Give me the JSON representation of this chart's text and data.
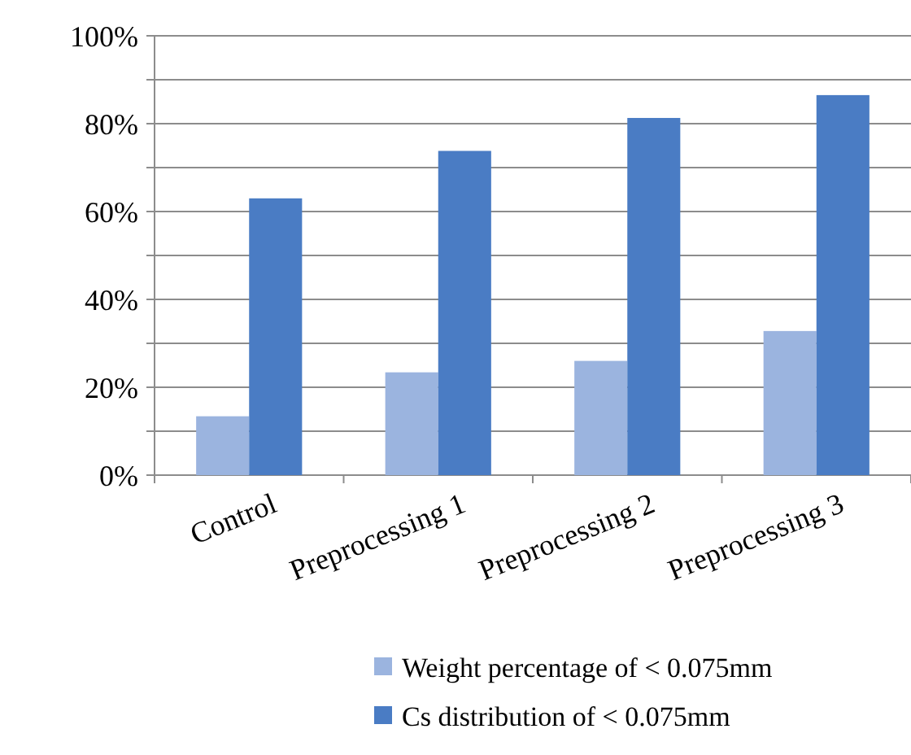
{
  "chart_data": {
    "type": "bar",
    "categories": [
      "Control",
      "Preprocessing 1",
      "Preprocessing 2",
      "Preprocessing 3"
    ],
    "series": [
      {
        "name": "Weight percentage of < 0.075mm",
        "color": "#9bb4df",
        "values": [
          13.4,
          23.4,
          26,
          32.8
        ]
      },
      {
        "name": "Cs distribution of < 0.075mm",
        "color": "#4a7cc4",
        "values": [
          63,
          73.8,
          81.3,
          86.5
        ]
      }
    ],
    "ylim": [
      0,
      100
    ],
    "yticks": [
      {
        "value": 0,
        "label": "0%"
      },
      {
        "value": 10,
        "label": null
      },
      {
        "value": 20,
        "label": "20%"
      },
      {
        "value": 30,
        "label": null
      },
      {
        "value": 40,
        "label": "40%"
      },
      {
        "value": 50,
        "label": null
      },
      {
        "value": 60,
        "label": "60%"
      },
      {
        "value": 70,
        "label": null
      },
      {
        "value": 80,
        "label": "80%"
      },
      {
        "value": 90,
        "label": null
      },
      {
        "value": 100,
        "label": "100%"
      }
    ],
    "grid": "y",
    "legend": "bottom"
  }
}
